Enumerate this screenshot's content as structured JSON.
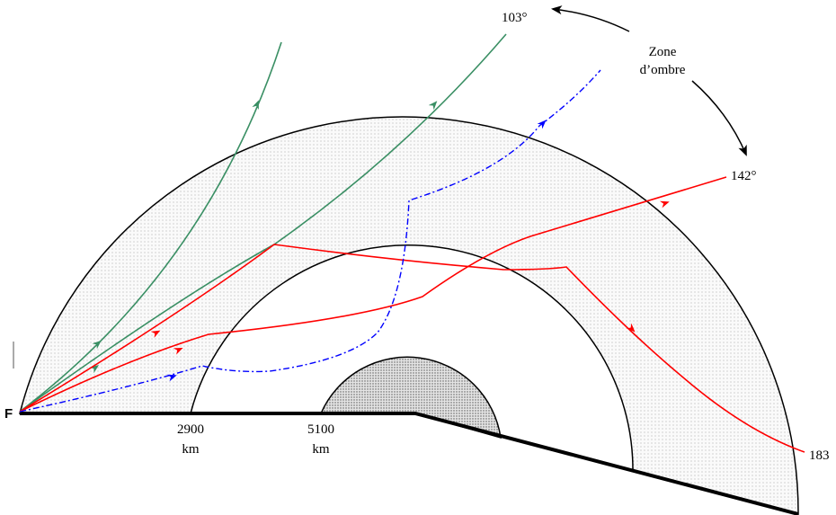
{
  "labels": {
    "focus": "F",
    "mantle_depth": "2900",
    "mantle_unit": "km",
    "core_depth": "5100",
    "core_unit": "km",
    "angle_start": "103°",
    "angle_end": "142°",
    "zone_line1": "Zone",
    "zone_line2": "d’ombre",
    "angle_far": "183"
  }
}
